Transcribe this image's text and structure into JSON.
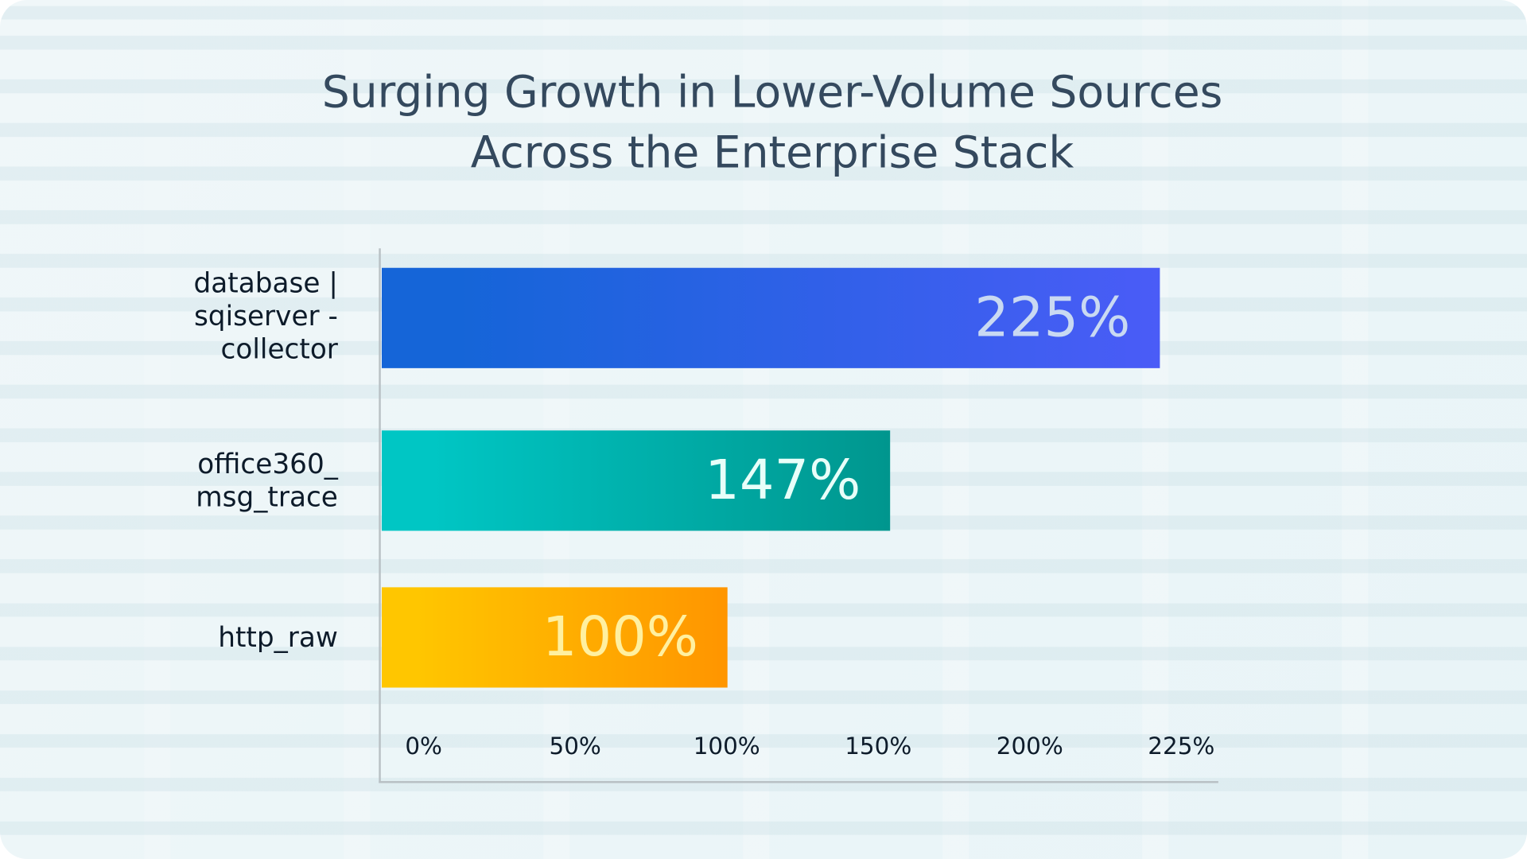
{
  "chart_data": {
    "type": "bar",
    "orientation": "horizontal",
    "title": [
      "Surging Growth in Lower-Volume Sources",
      "Across the Enterprise Stack"
    ],
    "categories": [
      [
        "database |",
        "sqiserver -",
        "collector"
      ],
      [
        "office360_",
        "msg_trace"
      ],
      [
        "http_raw"
      ]
    ],
    "values": [
      225,
      147,
      100
    ],
    "data_labels": [
      "225%",
      "147%",
      "100%"
    ],
    "xticks": [
      "0%",
      "50%",
      "100%",
      "150%",
      "200%",
      "225%"
    ],
    "xlim": [
      0,
      225
    ],
    "grid": false,
    "colors": [
      {
        "from": "#1565d8",
        "to": "#4a5cf7",
        "label": "#c9d9f2"
      },
      {
        "from": "#00c6c4",
        "to": "#00968e",
        "label": "#e8fff9"
      },
      {
        "from": "#ffc600",
        "to": "#ff9500",
        "label": "#fff0a0"
      }
    ]
  }
}
